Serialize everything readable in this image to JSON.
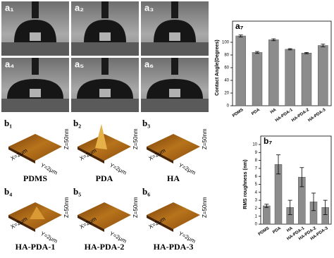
{
  "photos": [
    {
      "label": "a₁"
    },
    {
      "label": "a₂"
    },
    {
      "label": "a₃"
    },
    {
      "label": "a₄"
    },
    {
      "label": "a₅"
    },
    {
      "label": "a₆"
    }
  ],
  "afm": [
    {
      "label": "b₁",
      "caption": "PDMS",
      "x_size": "X=2μm",
      "y_size": "Y=2μm",
      "z_size": "Z=50nm"
    },
    {
      "label": "b₂",
      "caption": "PDA",
      "x_size": "X=2μm",
      "y_size": "Y=2μm",
      "z_size": "Z=50nm"
    },
    {
      "label": "b₃",
      "caption": "HA",
      "x_size": "X=2μm",
      "y_size": "Y=2μm",
      "z_size": "Z=50nm"
    },
    {
      "label": "b₄",
      "caption": "HA-PDA-1",
      "x_size": "X=2μm",
      "y_size": "Y=2μm",
      "z_size": "Z=50nm"
    },
    {
      "label": "b₅",
      "caption": "HA-PDA-2",
      "x_size": "X=2μm",
      "y_size": "Y=2μm",
      "z_size": "Z=50nm"
    },
    {
      "label": "b₆",
      "caption": "HA-PDA-3",
      "x_size": "X=2μm",
      "y_size": "Y=2μm",
      "z_size": "Z=50nm"
    }
  ],
  "chart_data": [
    {
      "type": "bar",
      "title": "a₇",
      "y_label": "Contact Angle(Degrees)",
      "categories": [
        "PDMS",
        "PDA",
        "HA",
        "HA-PDA-1",
        "HA-PDA-2",
        "HA-PDA-3"
      ],
      "values": [
        110,
        84,
        104,
        89,
        83,
        95
      ],
      "errors": [
        1.5,
        1.5,
        1.5,
        1,
        1,
        2
      ],
      "color": "#8c8c8c",
      "ylim": [
        0,
        120
      ],
      "yticks": [
        0,
        20,
        40,
        60,
        80,
        100
      ]
    },
    {
      "type": "bar",
      "title": "b₇",
      "y_label": "RMS roughness (nm)",
      "categories": [
        "PDMS",
        "PDA",
        "HA",
        "HA-PDA-1",
        "HA-PDA-2",
        "HA-PDA-3"
      ],
      "values": [
        2.3,
        7.5,
        2.1,
        5.9,
        2.8,
        2.1
      ],
      "errors": [
        0.2,
        1.2,
        0.9,
        1.2,
        1.1,
        0.9
      ],
      "color": "#8c8c8c",
      "ylim": [
        0,
        10
      ],
      "yticks": [
        0,
        1,
        2,
        3,
        4,
        5,
        6,
        7,
        8,
        9,
        10
      ]
    }
  ]
}
